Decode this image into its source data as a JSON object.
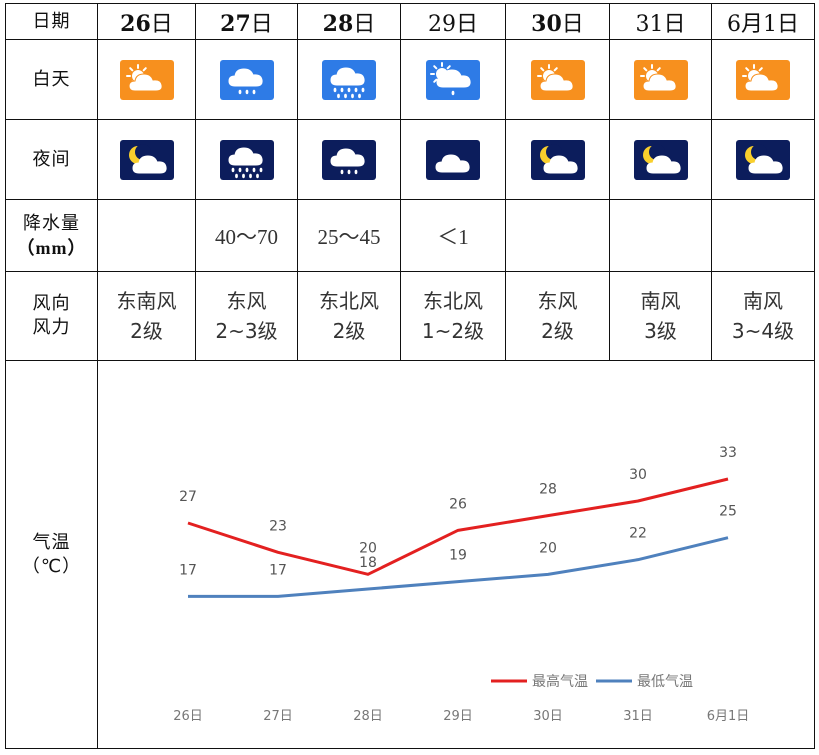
{
  "headers": {
    "date_row": "日期",
    "day_row": "白天",
    "night_row": "夜间",
    "precip_row_line1": "降水量",
    "precip_row_line2": "（mm）",
    "wind_row_line1": "风向",
    "wind_row_line2": "风力",
    "temp_row_line1": "气温",
    "temp_row_line2": "（℃）"
  },
  "days": [
    {
      "date_num": "26",
      "date_suffix": "日",
      "day_icon": "sunny-cloud-icon",
      "night_icon": "moon-cloud-icon",
      "precip": "",
      "wind_dir": "东南风",
      "wind_force": "2级"
    },
    {
      "date_num": "27",
      "date_suffix": "日",
      "day_icon": "rain-cloud-icon",
      "night_icon": "heavy-rain-cloud-icon",
      "precip": "40～70",
      "wind_dir": "东风",
      "wind_force": "2~3级"
    },
    {
      "date_num": "28",
      "date_suffix": "日",
      "day_icon": "heavy-rain-cloud-icon",
      "night_icon": "rain-cloud-icon",
      "precip": "25～45",
      "wind_dir": "东北风",
      "wind_force": "2级"
    },
    {
      "date_num": "29",
      "date_suffix": "日",
      "day_icon": "sun-rain-cloud-icon",
      "night_icon": "cloud-icon",
      "precip": "＜1",
      "wind_dir": "东北风",
      "wind_force": "1~2级"
    },
    {
      "date_num": "30",
      "date_suffix": "日",
      "day_icon": "sunny-cloud-icon",
      "night_icon": "moon-cloud-icon",
      "precip": "",
      "wind_dir": "东风",
      "wind_force": "2级"
    },
    {
      "date_num": "31",
      "date_suffix": "日",
      "day_icon": "sunny-cloud-icon",
      "night_icon": "moon-cloud-icon",
      "precip": "",
      "wind_dir": "南风",
      "wind_force": "3级"
    },
    {
      "date_num": "6月1",
      "date_suffix": "日",
      "day_icon": "sunny-cloud-icon",
      "night_icon": "moon-cloud-icon",
      "precip": "",
      "wind_dir": "南风",
      "wind_force": "3~4级"
    }
  ],
  "colors": {
    "day_bg": "#f7901e",
    "rain_bg": "#2e7be6",
    "night_bg": "#0c1d5c",
    "high_line": "#e32020",
    "low_line": "#4f81bd"
  },
  "chart_data": {
    "type": "line",
    "categories": [
      "26日",
      "27日",
      "28日",
      "29日",
      "30日",
      "31日",
      "6月1日"
    ],
    "series": [
      {
        "name": "最高气温",
        "values": [
          27,
          23,
          20,
          26,
          28,
          30,
          33
        ]
      },
      {
        "name": "最低气温",
        "values": [
          17,
          17,
          18,
          19,
          20,
          22,
          25
        ]
      }
    ],
    "legend": "bottom-right",
    "grid": false
  }
}
